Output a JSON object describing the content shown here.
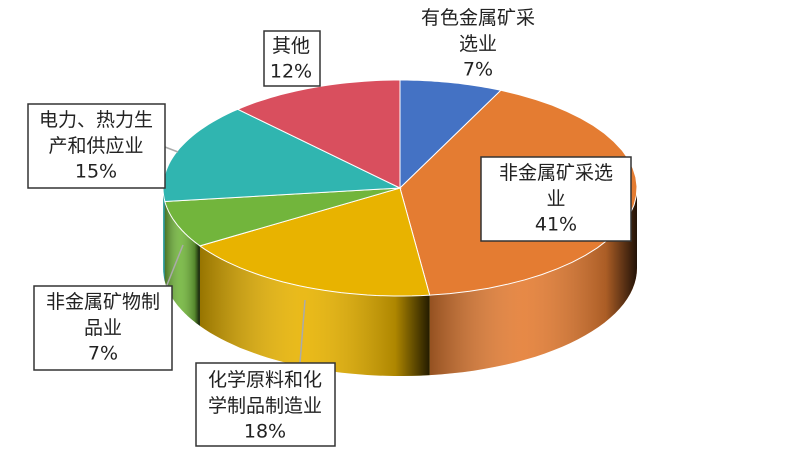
{
  "chart_data": {
    "type": "pie3d",
    "categories": [
      "有色金属矿采选业",
      "非金属矿采选业",
      "化学原料和化学制品制造业",
      "非金属矿物制品业",
      "电力、热力生产和供应业",
      "其他"
    ],
    "values": [
      7,
      41,
      18,
      7,
      15,
      12
    ],
    "value_labels": [
      "7%",
      "41%",
      "18%",
      "7%",
      "15%",
      "12%"
    ],
    "colors": [
      "#4472c4",
      "#e47c32",
      "#e8b300",
      "#72b53c",
      "#30b5b0",
      "#d94f5e"
    ]
  }
}
